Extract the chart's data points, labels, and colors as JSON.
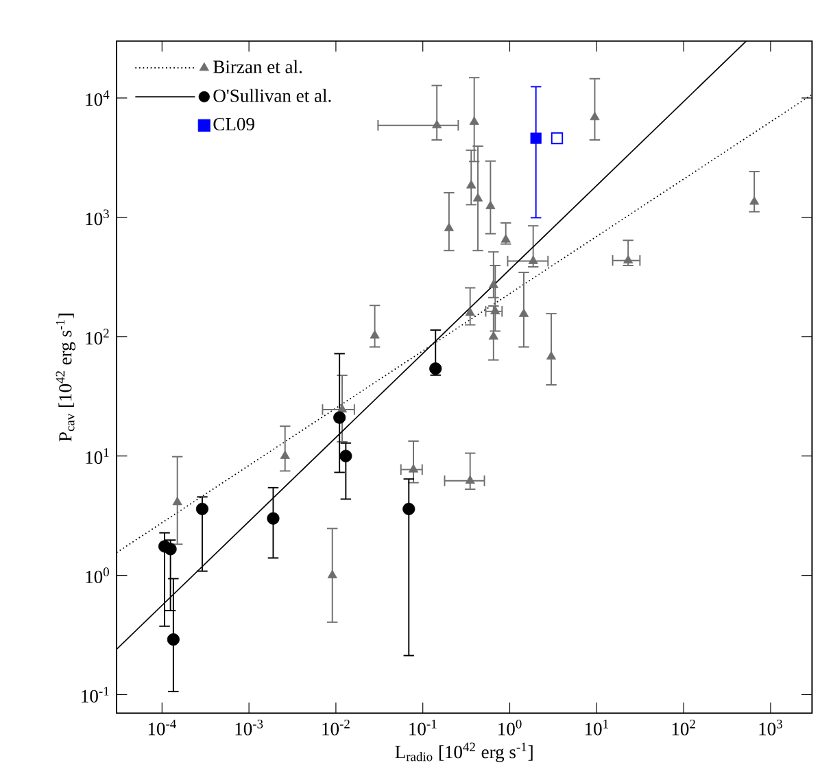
{
  "chart_data": {
    "type": "scatter",
    "xlabel": "L$_{radio}$ [10$^{42}$ erg s$^{-1}$]",
    "ylabel": "P$_{cav}$ [10$^{42}$ erg s$^{-1}$]",
    "log": "xy",
    "xlim": [
      3e-05,
      3000
    ],
    "ylim": [
      0.07,
      30000
    ],
    "xticks": [
      {
        "value": 0.0001,
        "label": "10$^{-4}$"
      },
      {
        "value": 0.001,
        "label": "10$^{-3}$"
      },
      {
        "value": 0.01,
        "label": "10$^{-2}$"
      },
      {
        "value": 0.1,
        "label": "10$^{-1}$"
      },
      {
        "value": 1,
        "label": "10$^{0}$"
      },
      {
        "value": 10,
        "label": "10$^{1}$"
      },
      {
        "value": 100,
        "label": "10$^{2}$"
      },
      {
        "value": 1000,
        "label": "10$^{3}$"
      }
    ],
    "yticks": [
      {
        "value": 0.1,
        "label": "10$^{-1}$"
      },
      {
        "value": 1,
        "label": "10$^{0}$"
      },
      {
        "value": 10,
        "label": "10$^{1}$"
      },
      {
        "value": 100,
        "label": "10$^{2}$"
      },
      {
        "value": 1000,
        "label": "10$^{3}$"
      },
      {
        "value": 10000,
        "label": "10$^{4}$"
      }
    ],
    "legend": "top left",
    "grid": false,
    "series": [
      {
        "type": "line",
        "color": "#000000",
        "line_style": "dotted",
        "x": [
          3e-05,
          3000
        ],
        "values": [
          1.55,
          10700
        ]
      },
      {
        "name": "Birzan et al.",
        "marker": "triangle",
        "color": "#6e6e6e",
        "x": [
          0.145,
          0.39,
          0.36,
          0.43,
          0.2,
          0.6,
          0.9,
          1.86,
          9.5,
          650,
          23,
          0.65,
          0.35,
          0.68,
          0.65,
          1.45,
          3.0,
          0.028,
          0.0118,
          0.0026,
          0.00015,
          0.0091,
          0.078,
          0.35
        ],
        "values": [
          5900,
          6300,
          1850,
          1440,
          810,
          1240,
          650,
          430,
          6900,
          1350,
          435,
          270,
          158,
          163,
          100,
          155,
          68,
          102,
          24.5,
          10,
          4.1,
          1.0,
          7.7,
          6.2
        ],
        "errors": [
          [
            4400,
            12900
          ],
          [
            2900,
            15000
          ],
          [
            1260,
            3700
          ],
          [
            520,
            4000
          ],
          [
            520,
            1630
          ],
          [
            720,
            3000
          ],
          [
            590,
            910
          ],
          [
            380,
            860
          ],
          [
            4400,
            14700
          ],
          [
            1100,
            2450
          ],
          [
            390,
            650
          ],
          [
            210,
            520
          ],
          [
            124,
            260
          ],
          [
            110,
            400
          ],
          [
            63,
            183
          ],
          [
            81,
            350
          ],
          [
            39,
            158
          ],
          [
            81,
            185
          ],
          [
            13,
            48
          ],
          [
            7.4,
            18
          ],
          [
            1.8,
            10
          ],
          [
            0.4,
            2.5
          ],
          [
            5.9,
            13.5
          ],
          [
            5.2,
            10.7
          ]
        ],
        "xerrors": [
          [
            0.03,
            0.26
          ],
          null,
          null,
          null,
          null,
          null,
          null,
          [
            0.93,
            2.8
          ],
          null,
          null,
          [
            15,
            32
          ],
          null,
          null,
          [
            0.52,
            0.83
          ],
          null,
          null,
          null,
          null,
          [
            0.0069,
            0.0166
          ],
          null,
          null,
          null,
          [
            0.055,
            0.1
          ],
          [
            0.175,
            0.52
          ]
        ]
      },
      {
        "type": "line",
        "color": "#000000",
        "line_style": "solid",
        "x": [
          3e-05,
          525
        ],
        "values": [
          0.24,
          30000
        ]
      },
      {
        "name": "O'Sullivan et al.",
        "marker": "circle",
        "color": "#000000",
        "x": [
          0.14,
          0.011,
          0.013,
          0.0019,
          0.00029,
          0.000107,
          0.000125,
          0.000135,
          0.069
        ],
        "values": [
          54,
          21,
          10,
          3.0,
          3.6,
          1.75,
          1.66,
          0.29,
          3.6
        ],
        "errors": [
          [
            47,
            115
          ],
          [
            7.2,
            73
          ],
          [
            4.3,
            13
          ],
          [
            1.38,
            5.5
          ],
          [
            1.07,
            4.6
          ],
          [
            0.37,
            2.3
          ],
          [
            0.5,
            2.0
          ],
          [
            0.105,
            0.95
          ],
          [
            0.21,
            6.5
          ]
        ]
      },
      {
        "name": "CL09",
        "marker": "square",
        "color": "#0000ff",
        "x": [
          2.0
        ],
        "values": [
          4600
        ],
        "errors": [
          [
            980,
            12600
          ]
        ]
      },
      {
        "marker": "square",
        "color": "#0000ff",
        "x": [
          3.5
        ],
        "values": [
          4600
        ]
      }
    ]
  }
}
